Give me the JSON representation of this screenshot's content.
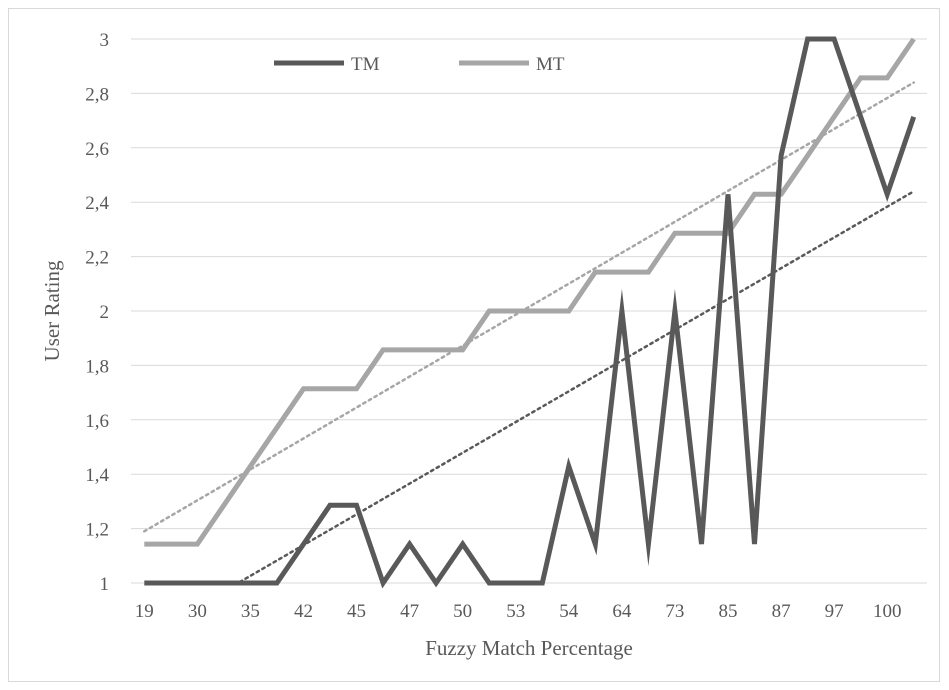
{
  "chart_data": {
    "type": "line",
    "xlabel": "Fuzzy Match Percentage",
    "ylabel": "User Rating",
    "ylim": [
      1,
      3
    ],
    "y_ticks": [
      "1",
      "1,2",
      "1,4",
      "1,6",
      "1,8",
      "2",
      "2,2",
      "2,4",
      "2,6",
      "2,8",
      "3"
    ],
    "x_tick_labels": [
      "19",
      "30",
      "35",
      "42",
      "45",
      "47",
      "50",
      "53",
      "54",
      "64",
      "73",
      "85",
      "87",
      "97",
      "100"
    ],
    "x_tick_positions": [
      0,
      2,
      4,
      6,
      8,
      10,
      12,
      14,
      16,
      18,
      20,
      22,
      24,
      26,
      28
    ],
    "point_count": 30,
    "grid": "horizontal",
    "legend_position": "top",
    "series": [
      {
        "name": "TM",
        "color": "#595959",
        "values": [
          1,
          1,
          1,
          1,
          1,
          1,
          1.143,
          1.286,
          1.286,
          1,
          1.143,
          1,
          1.143,
          1,
          1,
          1,
          1.429,
          1.143,
          2,
          1.143,
          2,
          1.143,
          2.429,
          1.143,
          2.571,
          3,
          3,
          2.714,
          2.429,
          2.714
        ]
      },
      {
        "name": "MT",
        "color": "#a6a6a6",
        "values": [
          1.143,
          1.143,
          1.143,
          1.286,
          1.429,
          1.571,
          1.714,
          1.714,
          1.714,
          1.857,
          1.857,
          1.857,
          1.857,
          2,
          2,
          2,
          2,
          2.143,
          2.143,
          2.143,
          2.286,
          2.286,
          2.286,
          2.429,
          2.429,
          2.571,
          2.714,
          2.857,
          2.857,
          3
        ]
      }
    ],
    "trendlines": [
      {
        "series": "TM",
        "style": "dotted",
        "color": "#595959",
        "start": 0.8,
        "end": 2.44
      },
      {
        "series": "MT",
        "style": "dotted",
        "color": "#a6a6a6",
        "start": 1.19,
        "end": 2.84
      }
    ]
  }
}
